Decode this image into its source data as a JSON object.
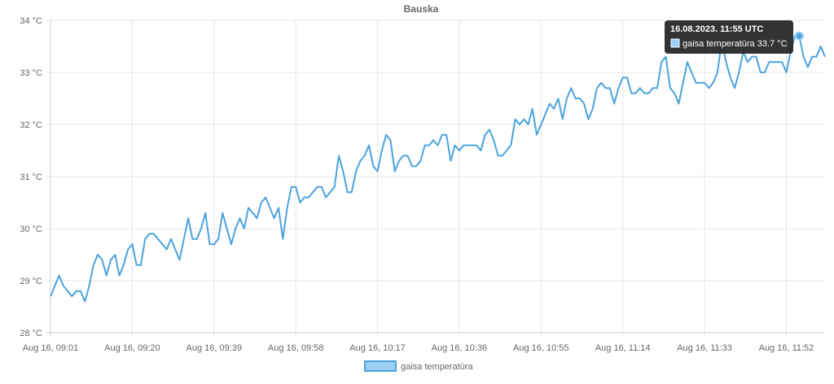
{
  "chart_data": {
    "type": "line",
    "title": "Bauska",
    "xlabel": "",
    "ylabel": "",
    "unit": "°C",
    "ylim": [
      28,
      34
    ],
    "yticks": [
      28,
      29,
      30,
      31,
      32,
      33,
      34
    ],
    "ytick_labels": [
      "28 °C",
      "29 °C",
      "30 °C",
      "31 °C",
      "32 °C",
      "33 °C",
      "34 °C"
    ],
    "xtick_labels": [
      "Aug 16, 09:01",
      "Aug 16, 09:20",
      "Aug 16, 09:39",
      "Aug 16, 09:58",
      "Aug 16, 10:17",
      "Aug 16, 10:36",
      "Aug 16, 10:55",
      "Aug 16, 11:14",
      "Aug 16, 11:33",
      "Aug 16, 11:52"
    ],
    "xtick_positions": [
      0,
      19,
      38,
      57,
      76,
      95,
      114,
      133,
      152,
      171
    ],
    "grid": true,
    "legend_position": "bottom",
    "series": [
      {
        "name": "gaisa temperatūra",
        "color": "#4ca3dd",
        "fill_color": "#9ad0f5",
        "values": [
          28.7,
          28.9,
          29.1,
          28.9,
          28.8,
          28.7,
          28.8,
          28.8,
          28.6,
          28.9,
          29.3,
          29.5,
          29.4,
          29.1,
          29.4,
          29.5,
          29.1,
          29.3,
          29.6,
          29.7,
          29.3,
          29.3,
          29.8,
          29.9,
          29.9,
          29.8,
          29.7,
          29.6,
          29.8,
          29.6,
          29.4,
          29.8,
          30.2,
          29.8,
          29.8,
          30.0,
          30.3,
          29.7,
          29.7,
          29.8,
          30.3,
          30.0,
          29.7,
          30.0,
          30.2,
          30.0,
          30.4,
          30.3,
          30.2,
          30.5,
          30.6,
          30.4,
          30.2,
          30.4,
          29.8,
          30.4,
          30.8,
          30.8,
          30.5,
          30.6,
          30.6,
          30.7,
          30.8,
          30.8,
          30.6,
          30.7,
          30.8,
          31.4,
          31.1,
          30.7,
          30.7,
          31.1,
          31.3,
          31.4,
          31.6,
          31.2,
          31.1,
          31.5,
          31.8,
          31.7,
          31.1,
          31.3,
          31.4,
          31.4,
          31.2,
          31.2,
          31.3,
          31.6,
          31.6,
          31.7,
          31.6,
          31.8,
          31.8,
          31.3,
          31.6,
          31.5,
          31.6,
          31.6,
          31.6,
          31.6,
          31.5,
          31.8,
          31.9,
          31.7,
          31.4,
          31.4,
          31.5,
          31.6,
          32.1,
          32.0,
          32.1,
          32.0,
          32.3,
          31.8,
          32.0,
          32.2,
          32.4,
          32.3,
          32.5,
          32.1,
          32.5,
          32.7,
          32.5,
          32.5,
          32.4,
          32.1,
          32.3,
          32.7,
          32.8,
          32.7,
          32.7,
          32.4,
          32.7,
          32.9,
          32.9,
          32.6,
          32.6,
          32.7,
          32.6,
          32.6,
          32.7,
          32.7,
          33.2,
          33.3,
          32.7,
          32.6,
          32.4,
          32.8,
          33.2,
          33.0,
          32.8,
          32.8,
          32.8,
          32.7,
          32.8,
          33.0,
          33.6,
          33.2,
          32.9,
          32.7,
          33.0,
          33.4,
          33.2,
          33.3,
          33.3,
          33.0,
          33.0,
          33.2,
          33.2,
          33.2,
          33.2,
          33.0,
          33.4,
          33.7,
          33.7,
          33.3,
          33.1,
          33.3,
          33.3,
          33.5,
          33.3
        ]
      }
    ],
    "tooltip": {
      "title": "16.08.2023. 11:55 UTC",
      "label": "gaisa temperatūra 33.7 °C",
      "point_index": 174
    }
  }
}
